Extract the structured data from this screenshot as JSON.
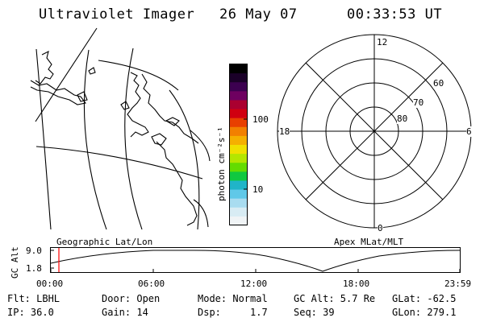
{
  "header": {
    "title": "Ultraviolet Imager",
    "date": "26 May 07",
    "time": "00:33:53 UT"
  },
  "geo_map": {
    "label": "Geographic Lat/Lon"
  },
  "colorbar": {
    "unit_label": "photon cm⁻²s⁻¹",
    "tick_labels": [
      "100",
      "10"
    ],
    "colors": [
      "#000000",
      "#1a0028",
      "#3c0050",
      "#6e0060",
      "#aa0030",
      "#d00010",
      "#e84000",
      "#f28000",
      "#f5b000",
      "#f0e000",
      "#b4e600",
      "#64dc00",
      "#10c840",
      "#20b4c8",
      "#60c8e8",
      "#a8dcf0",
      "#d8ecf4",
      "#f0f4f6"
    ]
  },
  "polar_plot": {
    "label": "Apex MLat/MLT",
    "mlt_labels": {
      "top": "12",
      "left": "18",
      "right": "6",
      "bottom": "0"
    },
    "mlat_labels": [
      "60",
      "70",
      "80"
    ]
  },
  "alt_plot": {
    "axis_title": "GC Alt",
    "y_ticks": [
      "9.0",
      "1.8"
    ],
    "x_ticks": [
      "00:00",
      "06:00",
      "12:00",
      "18:00",
      "23:59"
    ],
    "cursor_color": "#ff0000"
  },
  "info": {
    "row1": {
      "filter": "Flt: LBHL",
      "door": "Door: Open",
      "mode": "Mode: Normal",
      "gc_alt": "GC Alt: 5.7 Re",
      "glat": "GLat: -62.5"
    },
    "row2": {
      "ip": "IP: 36.0",
      "gain": "Gain: 14",
      "dsp": "Dsp:     1.7",
      "seq": "Seq: 39",
      "glon": "GLon: 279.1"
    }
  }
}
